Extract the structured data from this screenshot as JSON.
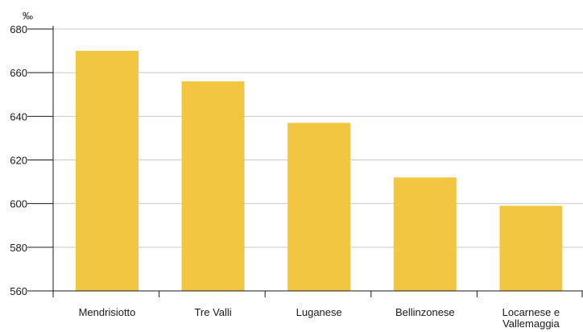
{
  "chart_data": {
    "type": "bar",
    "unit": "‰",
    "categories": [
      [
        "Mendrisiotto"
      ],
      [
        "Tre Valli"
      ],
      [
        "Luganese"
      ],
      [
        "Bellinzonese"
      ],
      [
        "Locarnese e",
        "Vallemaggia"
      ]
    ],
    "values": [
      670,
      656,
      637,
      612,
      599
    ],
    "ylim": [
      560,
      680
    ],
    "yticks": [
      560,
      580,
      600,
      620,
      640,
      660,
      680
    ],
    "grid": true,
    "colors": {
      "bar": "#f2c640",
      "grid": "#c8c8c8",
      "axis": "#1a1a1a",
      "text": "#1a1a1a"
    }
  }
}
